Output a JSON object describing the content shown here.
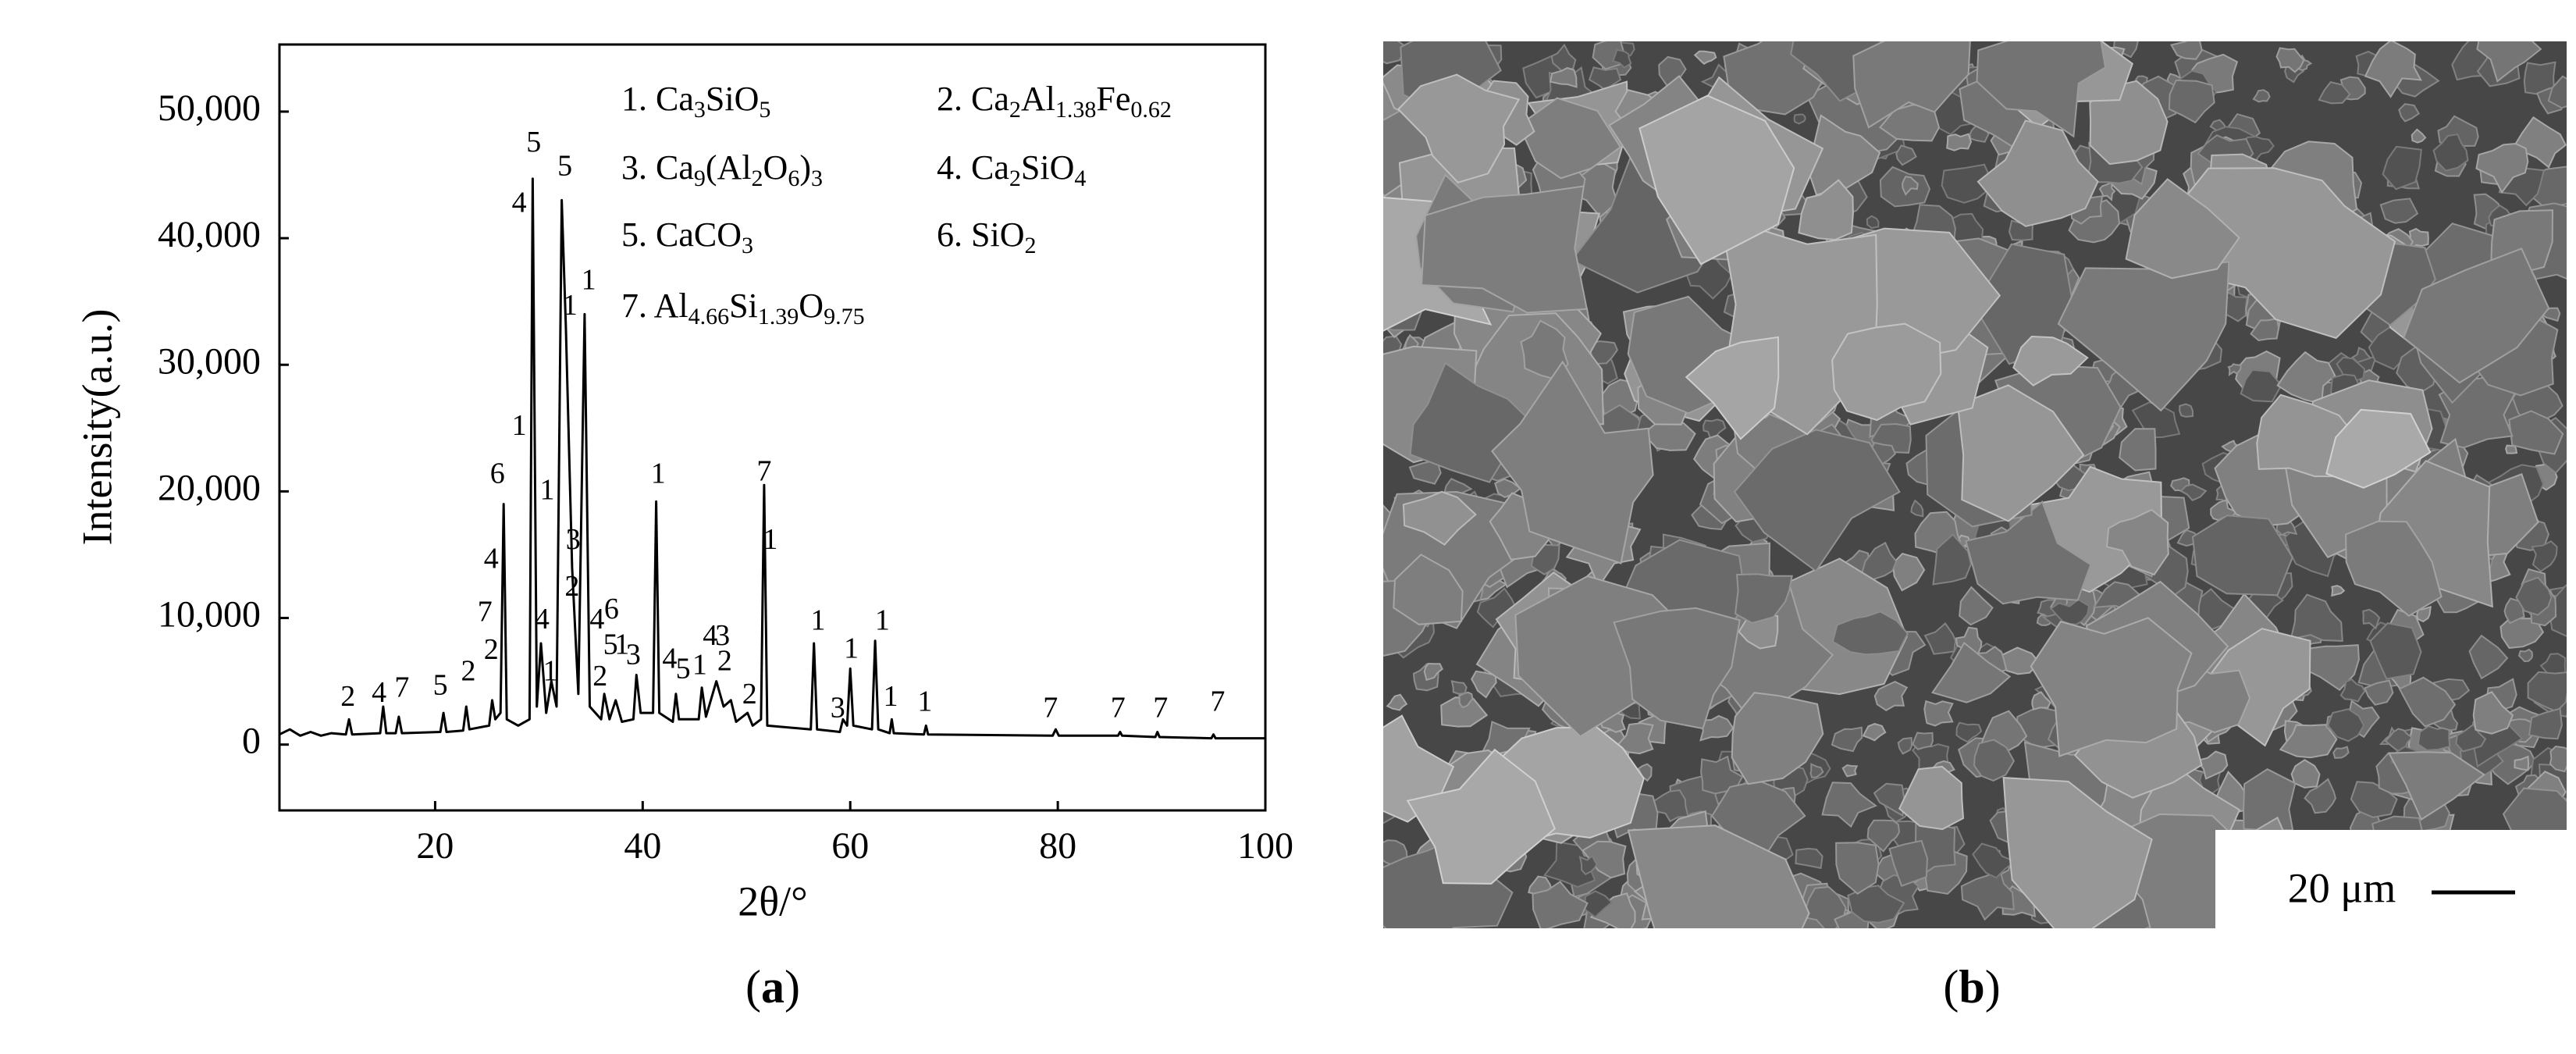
{
  "chart_data": {
    "type": "line",
    "y_label": "Intensity(a.u.)",
    "x_label": "2θ/°",
    "xlim": [
      5,
      100
    ],
    "xticks": [
      20,
      40,
      60,
      80,
      100
    ],
    "ylim": [
      -5200,
      55300
    ],
    "yticks": [
      0,
      {
        "value": 10000,
        "label": "10,000"
      },
      {
        "value": 20000,
        "label": "20,000"
      },
      {
        "value": 30000,
        "label": "30,000"
      },
      {
        "value": 40000,
        "label": "40,000"
      },
      {
        "value": 50000,
        "label": "50,000"
      }
    ],
    "color": "#000000",
    "x": [
      5,
      6,
      7,
      8,
      9,
      10,
      11.4,
      11.7,
      12,
      14.7,
      15,
      15.3,
      16.2,
      16.5,
      16.8,
      20.5,
      20.8,
      21.1,
      22.7,
      23,
      23.3,
      25.2,
      25.5,
      25.8,
      26.3,
      26.6,
      26.9,
      28,
      29.1,
      29.4,
      29.8,
      30.2,
      30.7,
      31.2,
      31.7,
      32.2,
      32.6,
      33.2,
      33.8,
      34.4,
      34.9,
      36,
      36.3,
      36.8,
      37.4,
      38,
      39.1,
      39.4,
      39.8,
      41,
      41.3,
      41.6,
      42.9,
      43.2,
      43.5,
      45.4,
      45.7,
      46.1,
      47.1,
      47.8,
      48.5,
      49,
      50.1,
      50.6,
      51.4,
      51.7,
      52,
      56.2,
      56.5,
      56.8,
      59,
      59.3,
      59.7,
      60,
      60.3,
      62.1,
      62.4,
      62.7,
      63.8,
      64,
      64.2,
      67.1,
      67.3,
      67.5,
      79.5,
      79.8,
      80.1,
      85.8,
      86,
      86.2,
      89.4,
      89.6,
      89.8,
      94.8,
      95,
      95.2,
      100
    ],
    "values": [
      800,
      1200,
      700,
      1000,
      700,
      900,
      800,
      2000,
      800,
      900,
      3000,
      900,
      900,
      2200,
      900,
      1000,
      2500,
      1000,
      1100,
      3000,
      1200,
      1500,
      3500,
      2000,
      2500,
      19000,
      2000,
      1500,
      2000,
      44700,
      3000,
      8000,
      2500,
      5000,
      3000,
      43000,
      33000,
      14000,
      4000,
      34000,
      3000,
      2000,
      4000,
      2000,
      3500,
      1800,
      2000,
      5500,
      2500,
      2500,
      19200,
      2500,
      1800,
      4000,
      2000,
      2000,
      4500,
      2200,
      5000,
      3000,
      3500,
      1800,
      2500,
      1500,
      2000,
      20500,
      1500,
      1200,
      8000,
      1200,
      1000,
      2000,
      1500,
      6000,
      1500,
      1200,
      8200,
      1200,
      900,
      2000,
      900,
      800,
      1500,
      800,
      700,
      1200,
      700,
      700,
      1000,
      700,
      600,
      1000,
      600,
      500,
      800,
      500,
      500
    ],
    "peak_labels": [
      {
        "label": "2",
        "x": 11.6,
        "y": 3600
      },
      {
        "label": "4",
        "x": 14.6,
        "y": 3900
      },
      {
        "label": "7",
        "x": 16.8,
        "y": 4300
      },
      {
        "label": "5",
        "x": 20.5,
        "y": 4500
      },
      {
        "label": "2",
        "x": 23.2,
        "y": 5600
      },
      {
        "label": "2",
        "x": 25.4,
        "y": 7300
      },
      {
        "label": "7",
        "x": 24.8,
        "y": 10300
      },
      {
        "label": "4",
        "x": 25.4,
        "y": 14500
      },
      {
        "label": "6",
        "x": 26.0,
        "y": 21200
      },
      {
        "label": "1",
        "x": 28.1,
        "y": 25000
      },
      {
        "label": "4",
        "x": 28.1,
        "y": 42600
      },
      {
        "label": "5",
        "x": 29.5,
        "y": 47400
      },
      {
        "label": "4",
        "x": 30.3,
        "y": 9700
      },
      {
        "label": "1",
        "x": 30.8,
        "y": 19900
      },
      {
        "label": "1",
        "x": 31.1,
        "y": 5600
      },
      {
        "label": "5",
        "x": 32.5,
        "y": 45500
      },
      {
        "label": "1",
        "x": 33.0,
        "y": 34500
      },
      {
        "label": "3",
        "x": 33.3,
        "y": 16000
      },
      {
        "label": "2",
        "x": 33.2,
        "y": 12300
      },
      {
        "label": "1",
        "x": 34.8,
        "y": 36500
      },
      {
        "label": "4",
        "x": 35.6,
        "y": 9700
      },
      {
        "label": "6",
        "x": 37.0,
        "y": 10500
      },
      {
        "label": "5",
        "x": 36.9,
        "y": 7700
      },
      {
        "label": "1",
        "x": 38.0,
        "y": 7700
      },
      {
        "label": "2",
        "x": 35.9,
        "y": 5200
      },
      {
        "label": "3",
        "x": 39.1,
        "y": 6900
      },
      {
        "label": "1",
        "x": 41.5,
        "y": 21200
      },
      {
        "label": "4",
        "x": 42.6,
        "y": 6600
      },
      {
        "label": "5",
        "x": 43.9,
        "y": 5800
      },
      {
        "label": "1",
        "x": 45.5,
        "y": 6100
      },
      {
        "label": "4",
        "x": 46.5,
        "y": 8400
      },
      {
        "label": "3",
        "x": 47.7,
        "y": 8400
      },
      {
        "label": "2",
        "x": 47.9,
        "y": 6400
      },
      {
        "label": "2",
        "x": 50.3,
        "y": 3800
      },
      {
        "label": "7",
        "x": 51.7,
        "y": 21400
      },
      {
        "label": "1",
        "x": 52.3,
        "y": 16000
      },
      {
        "label": "1",
        "x": 56.9,
        "y": 9600
      },
      {
        "label": "3",
        "x": 58.8,
        "y": 2700
      },
      {
        "label": "1",
        "x": 60.1,
        "y": 7400
      },
      {
        "label": "1",
        "x": 63.1,
        "y": 9600
      },
      {
        "label": "1",
        "x": 63.9,
        "y": 3600
      },
      {
        "label": "1",
        "x": 67.2,
        "y": 3200
      },
      {
        "label": "7",
        "x": 79.3,
        "y": 2700
      },
      {
        "label": "7",
        "x": 85.8,
        "y": 2700
      },
      {
        "label": "7",
        "x": 89.9,
        "y": 2700
      },
      {
        "label": "7",
        "x": 95.4,
        "y": 3200
      }
    ],
    "legend": [
      {
        "number": "1.",
        "formula": [
          "Ca",
          "3",
          "SiO",
          "5"
        ]
      },
      {
        "number": "2.",
        "formula": [
          "Ca",
          "2",
          "Al",
          "1.38",
          "Fe",
          "0.62"
        ]
      },
      {
        "number": "3.",
        "formula": [
          "Ca",
          "9",
          "(Al",
          "2",
          "O",
          "6",
          ")",
          "3"
        ]
      },
      {
        "number": "4.",
        "formula": [
          "Ca",
          "2",
          "SiO",
          "4"
        ]
      },
      {
        "number": "5.",
        "formula": [
          "CaCO",
          "3"
        ]
      },
      {
        "number": "6.",
        "formula": [
          "SiO",
          "2"
        ]
      },
      {
        "number": "7.",
        "formula": [
          "Al",
          "4.66",
          "Si",
          "1.39",
          "O",
          "9.75"
        ]
      }
    ],
    "caption": [
      "(",
      "a",
      ")"
    ]
  },
  "image": {
    "scale_bar": "20 μm",
    "caption": [
      "(",
      "b",
      ")"
    ]
  }
}
